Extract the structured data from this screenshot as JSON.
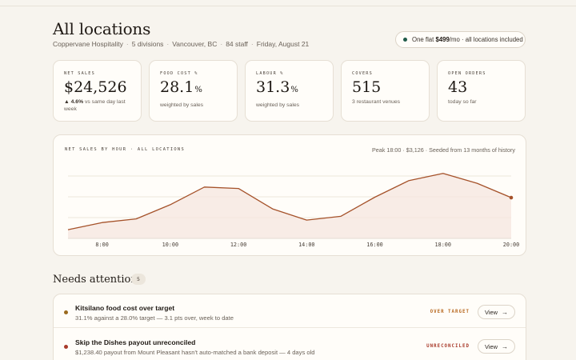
{
  "header": {
    "title": "All locations",
    "company": "Coppervane Hospitality",
    "divisions": "5 divisions",
    "city": "Vancouver, BC",
    "staff": "84 staff",
    "date": "Friday, August 21",
    "sep": "·"
  },
  "plan_pill": {
    "prefix": "One flat ",
    "price": "$499",
    "suffix": "/mo · all locations included"
  },
  "kpis": [
    {
      "label": "NET SALES",
      "value": "$24,526",
      "unit": "",
      "delta": "▲ 4.6%",
      "note": " vs same day last week"
    },
    {
      "label": "FOOD COST %",
      "value": "28.1",
      "unit": "%",
      "note": "weighted by sales"
    },
    {
      "label": "LABOUR %",
      "value": "31.3",
      "unit": "%",
      "note": "weighted by sales"
    },
    {
      "label": "COVERS",
      "value": "515",
      "unit": "",
      "note": "3 restaurant venues"
    },
    {
      "label": "OPEN ORDERS",
      "value": "43",
      "unit": "",
      "note": "today so far"
    }
  ],
  "chart": {
    "label": "NET SALES BY HOUR · ALL LOCATIONS",
    "meta": "Peak 18:00 · $3,126 · Seeded from 13 months of history"
  },
  "chart_data": {
    "type": "area",
    "x": [
      7,
      8,
      9,
      10,
      11,
      12,
      13,
      14,
      15,
      16,
      17,
      18,
      19,
      20
    ],
    "values": [
      420,
      760,
      940,
      1620,
      2470,
      2400,
      1420,
      880,
      1060,
      1980,
      2780,
      3126,
      2650,
      1960
    ],
    "xtick_labels": [
      "8:00",
      "10:00",
      "12:00",
      "14:00",
      "16:00",
      "18:00",
      "20:00"
    ],
    "xticks": [
      8,
      10,
      12,
      14,
      16,
      18,
      20
    ],
    "xlim": [
      8,
      20
    ],
    "ylim": [
      0,
      3500
    ],
    "grid": true,
    "line_color": "#a5522a",
    "fill_color": "#f5e6df",
    "title": "NET SALES BY HOUR · ALL LOCATIONS"
  },
  "attention": {
    "title": "Needs attention",
    "count": "5",
    "items": [
      {
        "title": "Kitsilano food cost over target",
        "desc": "31.1% against a 28.0% target — 3.1 pts over, week to date",
        "tag": "OVER TARGET",
        "tag_color": "#b8681f",
        "dot_color": "#9a6a1e",
        "button": "View"
      },
      {
        "title": "Skip the Dishes payout unreconciled",
        "desc": "$1,238.40 payout from Mount Pleasant hasn't auto-matched a bank deposit — 4 days old",
        "tag": "UNRECONCILED",
        "tag_color": "#a83a2a",
        "dot_color": "#a83a2a",
        "button": "View"
      }
    ]
  }
}
